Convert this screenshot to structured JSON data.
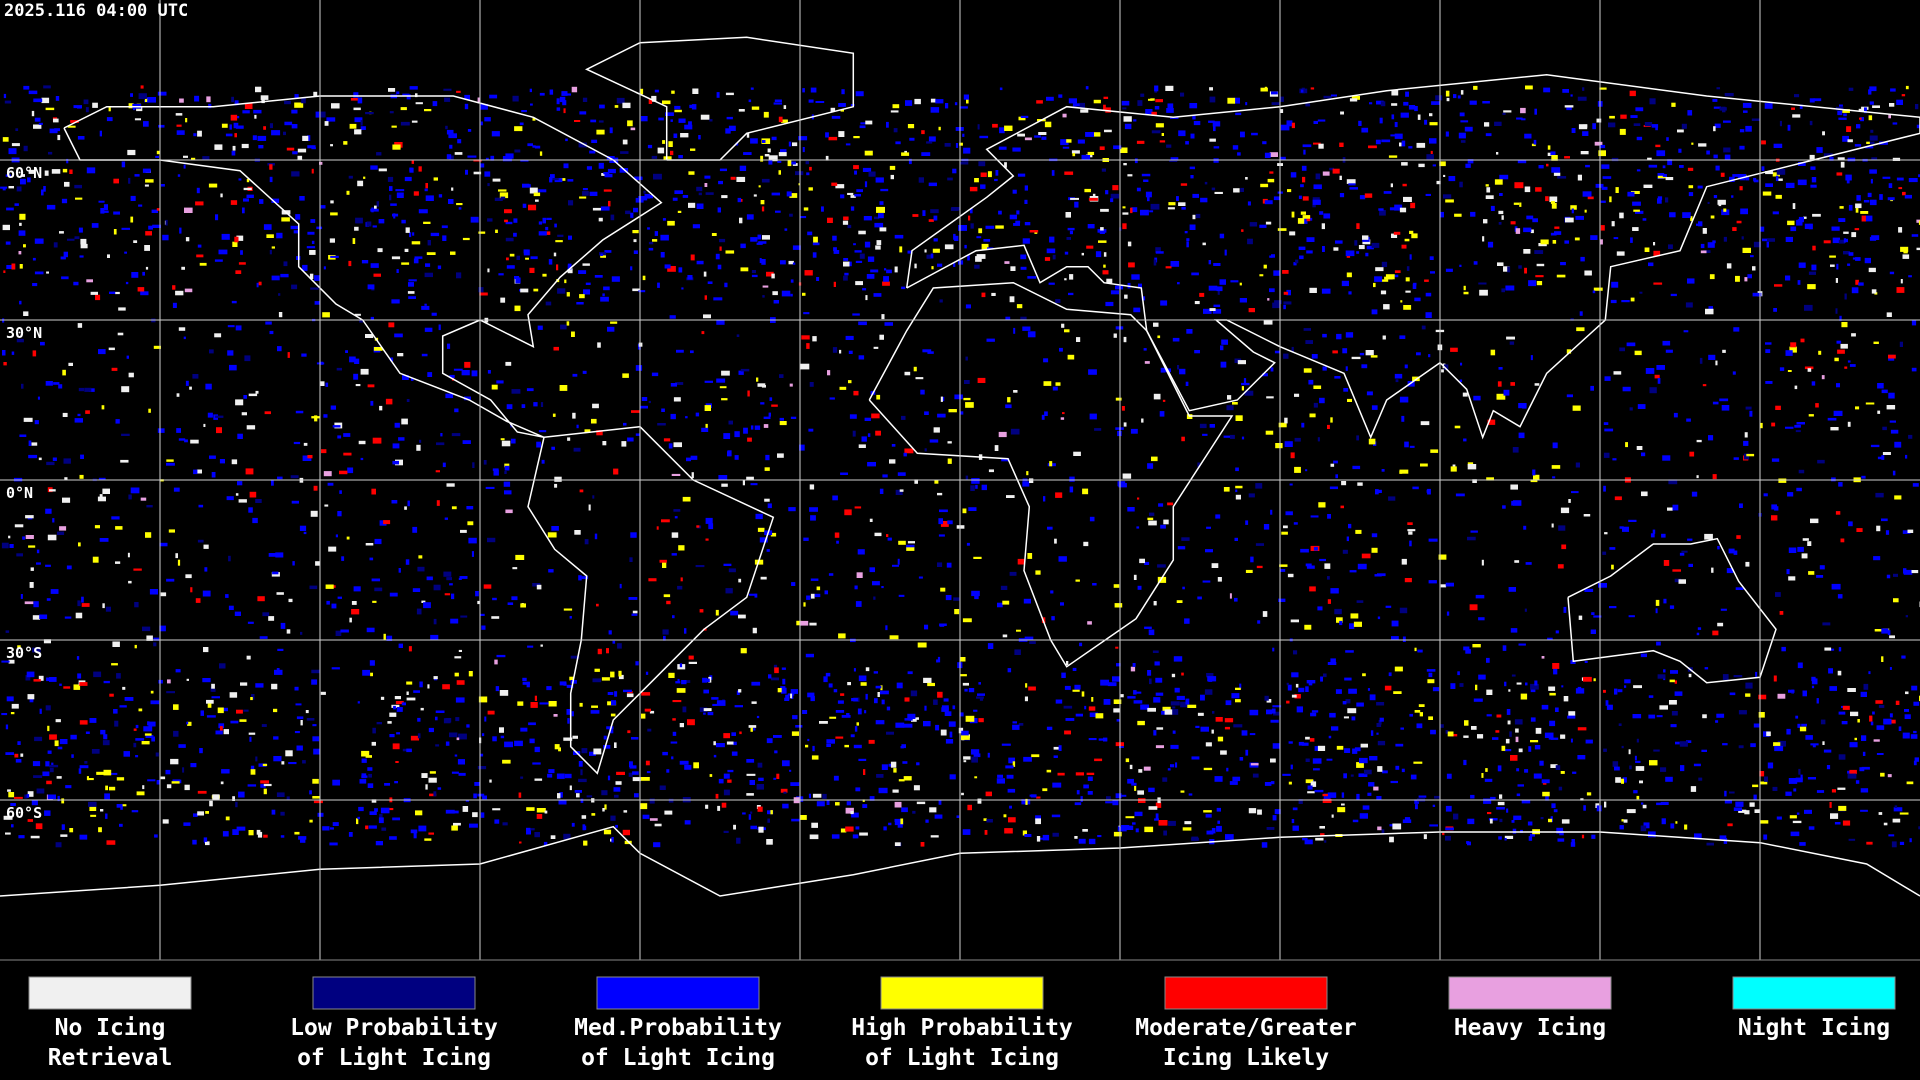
{
  "header": {
    "timestamp": "2025.116 04:00 UTC"
  },
  "map": {
    "latitude_labels": [
      "60°N",
      "30°N",
      "0°N",
      "30°S",
      "60°S"
    ]
  },
  "legend": [
    {
      "color": "#f0f0f0",
      "lines": [
        "No Icing",
        "Retrieval"
      ]
    },
    {
      "color": "#000080",
      "lines": [
        "Low Probability",
        "of Light Icing"
      ]
    },
    {
      "color": "#0000ff",
      "lines": [
        "Med.Probability",
        "of Light Icing"
      ]
    },
    {
      "color": "#ffff00",
      "lines": [
        "High Probability",
        "of Light Icing"
      ]
    },
    {
      "color": "#ff0000",
      "lines": [
        "Moderate/Greater",
        "Icing Likely"
      ]
    },
    {
      "color": "#e8a0e0",
      "lines": [
        "Heavy Icing"
      ]
    },
    {
      "color": "#00ffff",
      "lines": [
        "Night Icing"
      ]
    }
  ]
}
